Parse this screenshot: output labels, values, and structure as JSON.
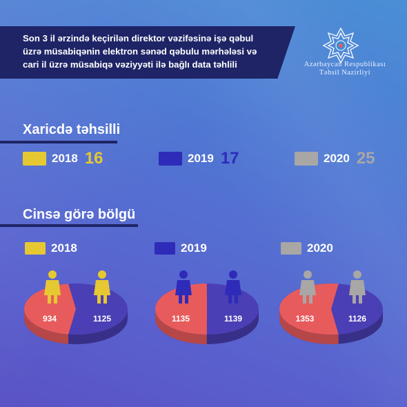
{
  "header": {
    "lines": [
      "Son 3 il ərzində keçirilən direktor vəzifəsinə işə qəbul",
      "üzrə müsabiqənin elektron sənəd qəbulu mərhələsi və",
      "cari il üzrə müsabiqə vəziyyəti ilə bağlı data təhlili"
    ]
  },
  "ministry": {
    "line1": "Azərbaycan Respublikası",
    "line2": "Təhsil Nazirliyi"
  },
  "colors": {
    "2018": "#e6c833",
    "2019": "#2e2bb8",
    "2020": "#a9a6a6",
    "female_side": "#e85b5c",
    "male_side": "#4b3fb5"
  },
  "chart_data": [
    {
      "type": "table",
      "title": "Xaricdə təhsilli",
      "categories": [
        "2018",
        "2019",
        "2020"
      ],
      "values": [
        16,
        17,
        25
      ]
    },
    {
      "type": "pie",
      "title": "Cinsə görə bölgü",
      "pies": [
        {
          "year": "2018",
          "values": [
            934,
            1125
          ]
        },
        {
          "year": "2019",
          "values": [
            1135,
            1139
          ]
        },
        {
          "year": "2020",
          "values": [
            1353,
            1126
          ]
        }
      ]
    }
  ]
}
